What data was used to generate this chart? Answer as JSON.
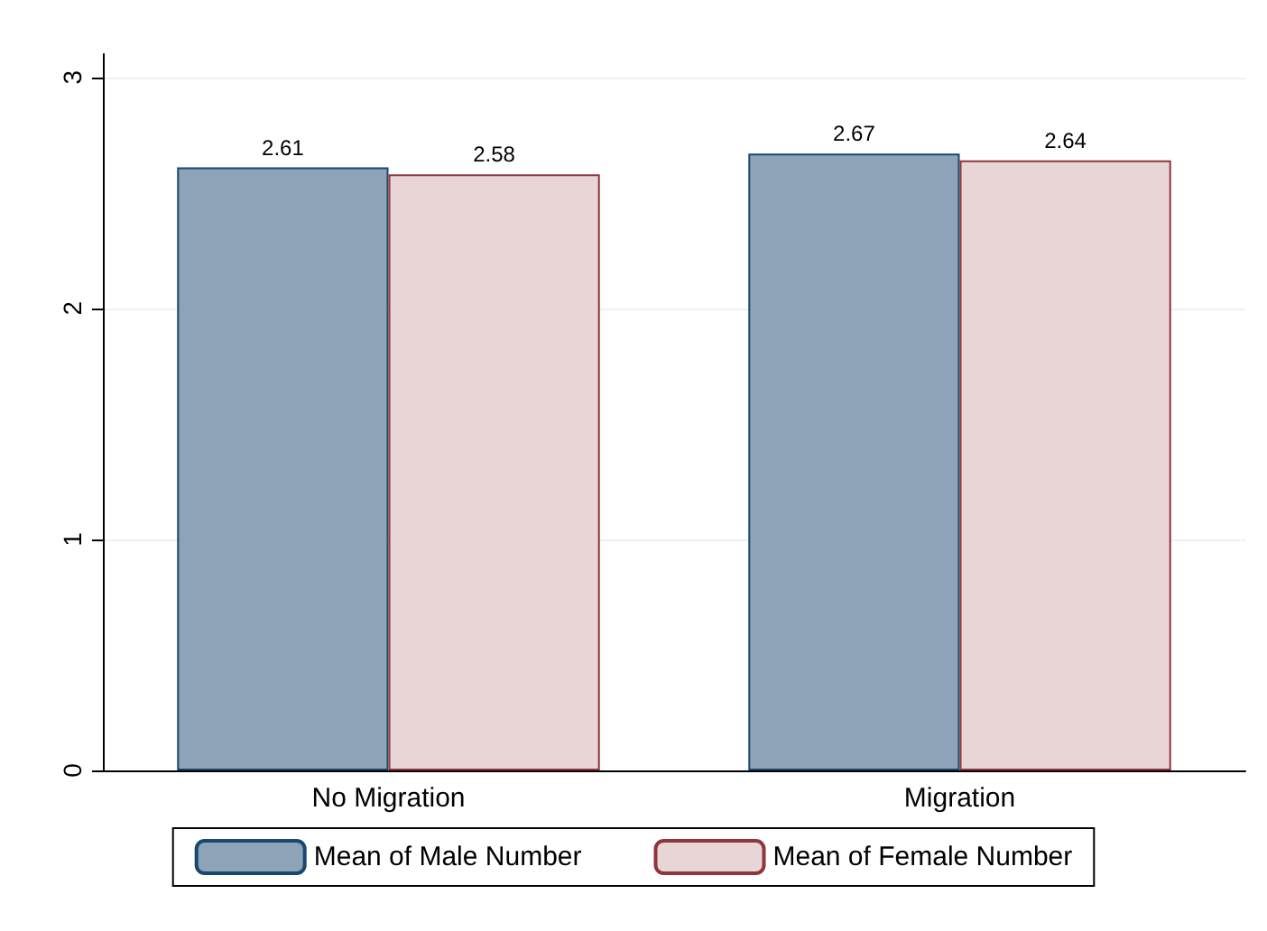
{
  "chart_data": {
    "type": "bar",
    "categories": [
      "No Migration",
      "Migration"
    ],
    "series": [
      {
        "name": "Mean of Male Number",
        "color": "#8ca3b8",
        "values": [
          2.61,
          2.67
        ]
      },
      {
        "name": "Mean of Female Number",
        "color": "#e8d6d6",
        "values": [
          2.58,
          2.64
        ]
      }
    ],
    "ylim": [
      0,
      3.1
    ],
    "yticks": [
      0,
      1,
      2,
      3
    ],
    "grid": "y",
    "legend": "bottom",
    "data_labels": true
  }
}
